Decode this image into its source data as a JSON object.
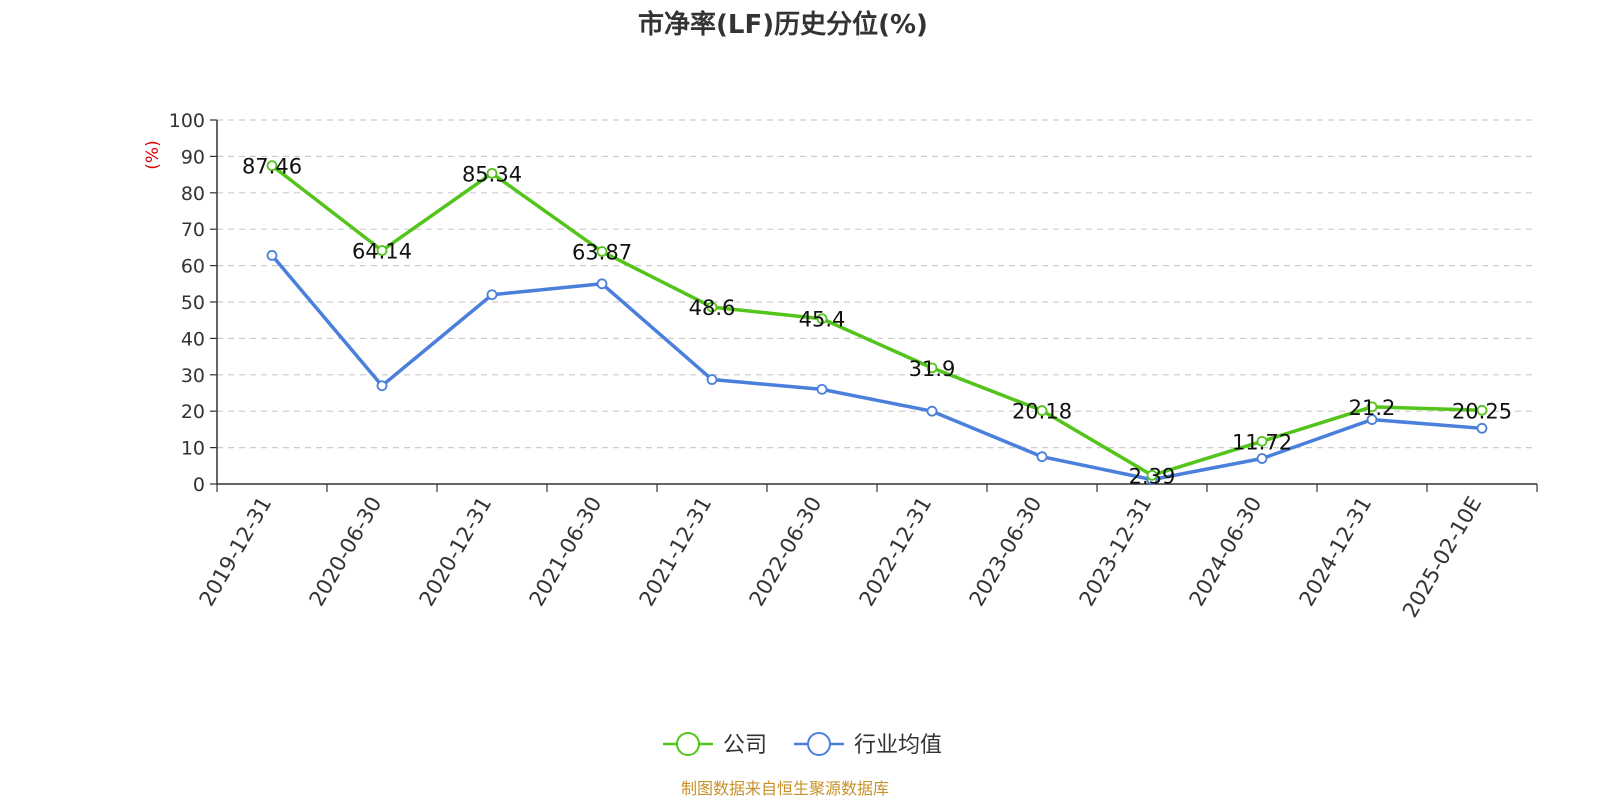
{
  "chart_data": {
    "type": "line",
    "title": "市净率(LF)历史分位(%)",
    "y_unit": "(%)",
    "categories": [
      "2019-12-31",
      "2020-06-30",
      "2020-12-31",
      "2021-06-30",
      "2021-12-31",
      "2022-06-30",
      "2022-12-31",
      "2023-06-30",
      "2023-12-31",
      "2024-06-30",
      "2024-12-31",
      "2025-02-10E"
    ],
    "ylim": [
      0,
      100
    ],
    "yticks": [
      0,
      10,
      20,
      30,
      40,
      50,
      60,
      70,
      80,
      90,
      100
    ],
    "grid": true,
    "legend_position": "bottom",
    "series": [
      {
        "name": "公司",
        "color": "#52c41a",
        "values": [
          87.46,
          64.14,
          85.34,
          63.87,
          48.6,
          45.4,
          31.9,
          20.18,
          2.39,
          11.72,
          21.2,
          20.25
        ],
        "labels": [
          "87.46",
          "64.14",
          "85.34",
          "63.87",
          "48.6",
          "45.4",
          "31.9",
          "20.18",
          "2.39",
          "11.72",
          "21.2",
          "20.25"
        ]
      },
      {
        "name": "行业均值",
        "color": "#4a7fdc",
        "values": [
          62.8,
          27.0,
          52.0,
          55.0,
          28.7,
          26.0,
          20.0,
          7.5,
          1.2,
          7.0,
          17.7,
          15.3
        ]
      }
    ]
  },
  "source": "制图数据来自恒生聚源数据库",
  "colors": {
    "unit_label": "#dd0000",
    "source_text": "#c8902a",
    "axis": "#333333",
    "grid": "#cccccc"
  }
}
